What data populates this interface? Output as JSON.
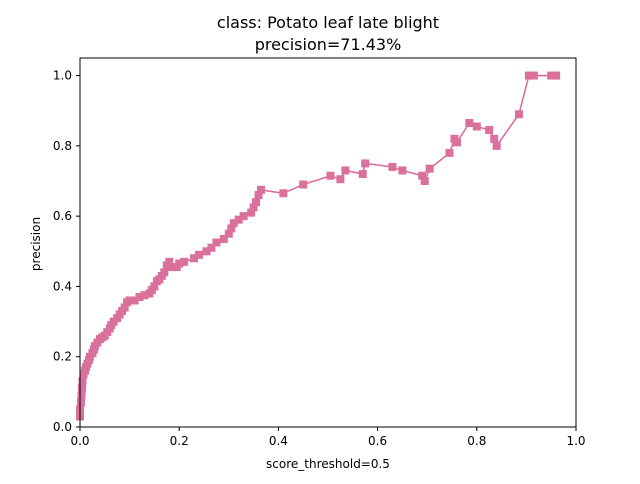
{
  "chart_data": {
    "type": "line",
    "title": "class: Potato leaf late blight",
    "subtitle": "precision=71.43%",
    "xlabel": "score_threshold=0.5",
    "ylabel": "precision",
    "xlim": [
      0.0,
      1.0
    ],
    "ylim": [
      0.0,
      1.05
    ],
    "xticks": [
      "0.0",
      "0.2",
      "0.4",
      "0.6",
      "0.8",
      "1.0"
    ],
    "yticks": [
      "0.0",
      "0.2",
      "0.4",
      "0.6",
      "0.8",
      "1.0"
    ],
    "grid": false,
    "legend": "none",
    "marker": "square",
    "series": [
      {
        "color": "#d9719c",
        "points": [
          [
            0.0,
            0.03
          ],
          [
            0.0,
            0.05
          ],
          [
            0.002,
            0.07
          ],
          [
            0.003,
            0.09
          ],
          [
            0.004,
            0.11
          ],
          [
            0.005,
            0.13
          ],
          [
            0.007,
            0.15
          ],
          [
            0.01,
            0.16
          ],
          [
            0.012,
            0.17
          ],
          [
            0.015,
            0.18
          ],
          [
            0.018,
            0.19
          ],
          [
            0.02,
            0.2
          ],
          [
            0.025,
            0.21
          ],
          [
            0.028,
            0.22
          ],
          [
            0.03,
            0.23
          ],
          [
            0.035,
            0.24
          ],
          [
            0.04,
            0.25
          ],
          [
            0.045,
            0.255
          ],
          [
            0.05,
            0.26
          ],
          [
            0.055,
            0.27
          ],
          [
            0.06,
            0.28
          ],
          [
            0.063,
            0.29
          ],
          [
            0.068,
            0.3
          ],
          [
            0.075,
            0.31
          ],
          [
            0.08,
            0.32
          ],
          [
            0.085,
            0.33
          ],
          [
            0.09,
            0.34
          ],
          [
            0.095,
            0.355
          ],
          [
            0.1,
            0.36
          ],
          [
            0.11,
            0.36
          ],
          [
            0.12,
            0.37
          ],
          [
            0.13,
            0.375
          ],
          [
            0.14,
            0.38
          ],
          [
            0.145,
            0.39
          ],
          [
            0.15,
            0.4
          ],
          [
            0.155,
            0.415
          ],
          [
            0.16,
            0.42
          ],
          [
            0.165,
            0.43
          ],
          [
            0.17,
            0.44
          ],
          [
            0.175,
            0.46
          ],
          [
            0.18,
            0.47
          ],
          [
            0.185,
            0.455
          ],
          [
            0.195,
            0.455
          ],
          [
            0.2,
            0.465
          ],
          [
            0.21,
            0.47
          ],
          [
            0.23,
            0.48
          ],
          [
            0.24,
            0.49
          ],
          [
            0.255,
            0.5
          ],
          [
            0.265,
            0.51
          ],
          [
            0.275,
            0.525
          ],
          [
            0.29,
            0.535
          ],
          [
            0.3,
            0.55
          ],
          [
            0.305,
            0.565
          ],
          [
            0.31,
            0.58
          ],
          [
            0.32,
            0.59
          ],
          [
            0.33,
            0.6
          ],
          [
            0.345,
            0.61
          ],
          [
            0.35,
            0.625
          ],
          [
            0.355,
            0.64
          ],
          [
            0.36,
            0.66
          ],
          [
            0.365,
            0.675
          ],
          [
            0.41,
            0.665
          ],
          [
            0.45,
            0.69
          ],
          [
            0.505,
            0.715
          ],
          [
            0.525,
            0.705
          ],
          [
            0.535,
            0.73
          ],
          [
            0.57,
            0.72
          ],
          [
            0.575,
            0.75
          ],
          [
            0.63,
            0.74
          ],
          [
            0.65,
            0.73
          ],
          [
            0.69,
            0.715
          ],
          [
            0.695,
            0.7
          ],
          [
            0.705,
            0.735
          ],
          [
            0.745,
            0.78
          ],
          [
            0.755,
            0.82
          ],
          [
            0.76,
            0.81
          ],
          [
            0.785,
            0.865
          ],
          [
            0.8,
            0.855
          ],
          [
            0.825,
            0.845
          ],
          [
            0.835,
            0.82
          ],
          [
            0.84,
            0.8
          ],
          [
            0.885,
            0.89
          ],
          [
            0.905,
            1.0
          ],
          [
            0.915,
            1.0
          ],
          [
            0.95,
            1.0
          ],
          [
            0.96,
            1.0
          ]
        ]
      }
    ]
  }
}
